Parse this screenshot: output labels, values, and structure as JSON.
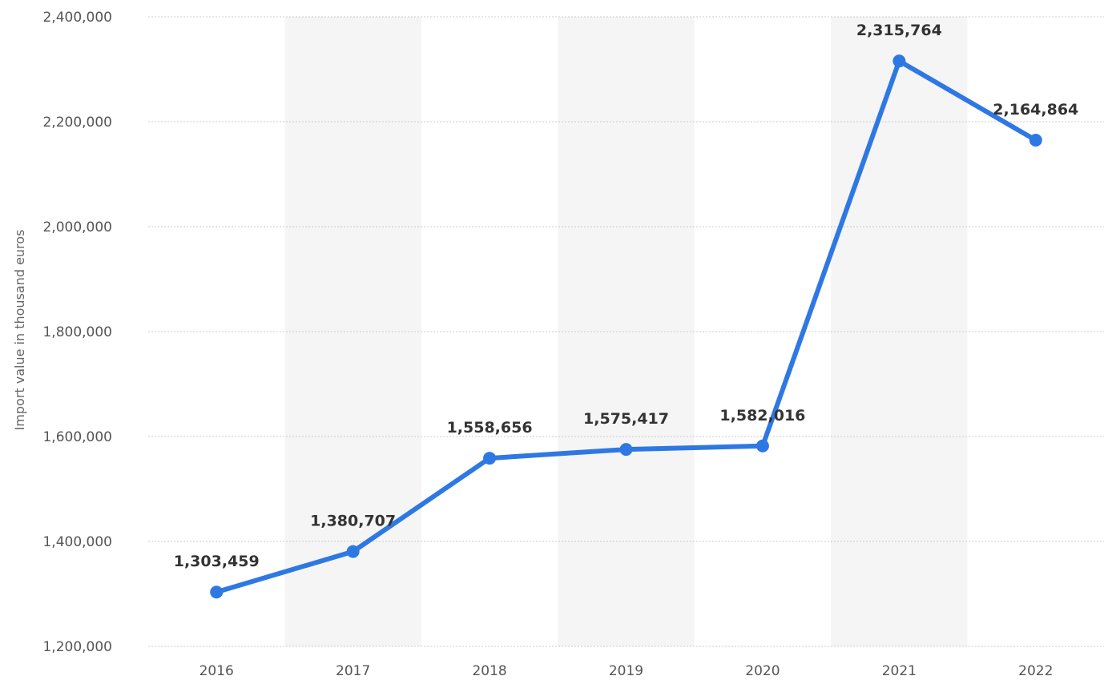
{
  "chart_data": {
    "type": "line",
    "title": "",
    "xlabel": "",
    "ylabel": "Import value in thousand euros",
    "categories": [
      "2016",
      "2017",
      "2018",
      "2019",
      "2020",
      "2021",
      "2022"
    ],
    "values": [
      1303459,
      1380707,
      1558656,
      1575417,
      1582016,
      2315764,
      2164864
    ],
    "value_labels": [
      "1,303,459",
      "1,380,707",
      "1,558,656",
      "1,575,417",
      "1,582,016",
      "2,315,764",
      "2,164,864"
    ],
    "ylim": [
      1200000,
      2400000
    ],
    "yticks": [
      1200000,
      1400000,
      1600000,
      1800000,
      2000000,
      2200000,
      2400000
    ],
    "ytick_labels": [
      "1,200,000",
      "1,400,000",
      "1,600,000",
      "1,800,000",
      "2,000,000",
      "2,200,000",
      "2,400,000"
    ],
    "grid": "horizontal dotted",
    "alternate_column_shading": true,
    "legend": "none",
    "colors": {
      "line": "#2e78e4",
      "band": "#f5f5f5",
      "grid": "#cccccc"
    }
  }
}
